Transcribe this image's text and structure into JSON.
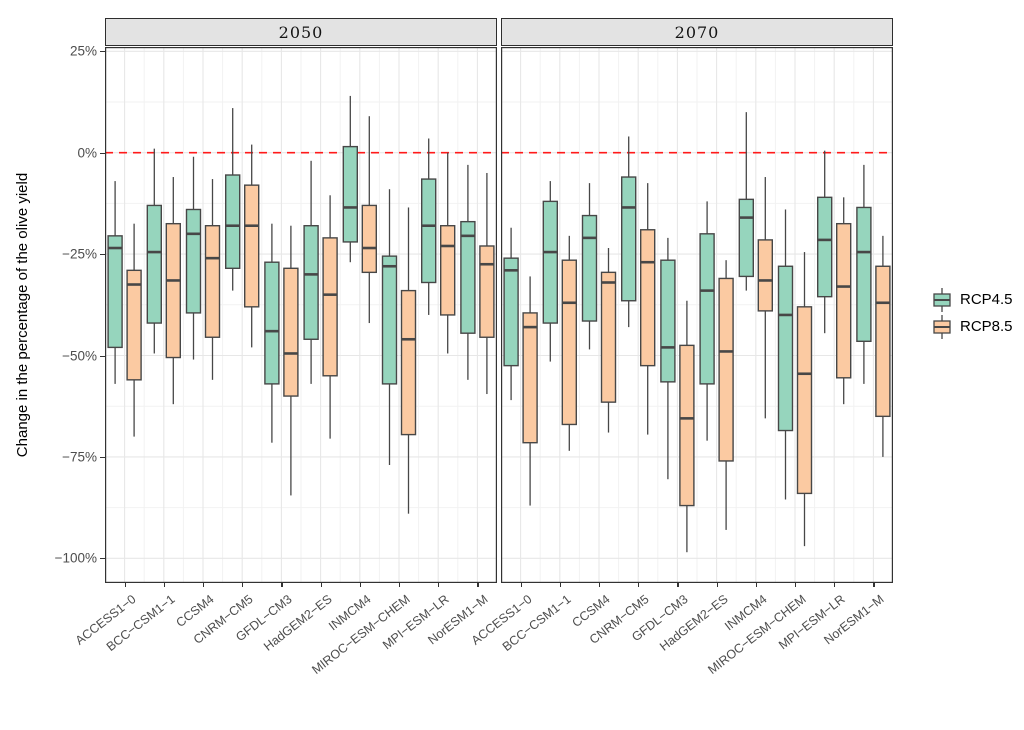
{
  "chart_data": {
    "type": "boxplot",
    "title": "",
    "ylabel": "Change in the percentage of the olive yield",
    "xlabel": "",
    "ylim": [
      -106,
      26
    ],
    "y_ticks": [
      "25%",
      "0%",
      "−25%",
      "−50%",
      "−75%",
      "−100%"
    ],
    "y_tick_values": [
      25,
      0,
      -25,
      -50,
      -75,
      -100
    ],
    "grid": true,
    "legend_position": "right",
    "reference_line": {
      "y": 0,
      "style": "dashed",
      "color": "#FF1A1A"
    },
    "categories": [
      "ACCESS1−0",
      "BCC−CSM1−1",
      "CCSM4",
      "CNRM−CM5",
      "GFDL−CM3",
      "HadGEM2−ES",
      "INMCM4",
      "MIROC−ESM−CHEM",
      "MPI−ESM−LR",
      "NorESM1−M"
    ],
    "series_names": [
      "RCP4.5",
      "RCP8.5"
    ],
    "stats_order": [
      "whisker_low",
      "q1",
      "median",
      "q3",
      "whisker_high"
    ],
    "facets": [
      {
        "label": "2050",
        "series": [
          {
            "name": "RCP4.5",
            "boxes": [
              [
                -57,
                -48,
                -23.5,
                -20.5,
                -7
              ],
              [
                -49.5,
                -42,
                -24.5,
                -13,
                1
              ],
              [
                -51,
                -39.5,
                -20,
                -14,
                -1
              ],
              [
                -34,
                -28.5,
                -18,
                -5.5,
                11
              ],
              [
                -71.5,
                -57,
                -44,
                -27,
                -17.5
              ],
              [
                -57,
                -46,
                -30,
                -18,
                -2
              ],
              [
                -27,
                -22,
                -13.5,
                1.5,
                14
              ],
              [
                -77,
                -57,
                -28,
                -25.5,
                -9
              ],
              [
                -40,
                -32,
                -18,
                -6.5,
                3.5
              ],
              [
                -56,
                -44.5,
                -20.5,
                -17,
                -3
              ]
            ]
          },
          {
            "name": "RCP8.5",
            "boxes": [
              [
                -70,
                -56,
                -32.5,
                -29,
                -17.5
              ],
              [
                -62,
                -50.5,
                -31.5,
                -17.5,
                -6
              ],
              [
                -56,
                -45.5,
                -26,
                -18,
                -6.5
              ],
              [
                -48,
                -38,
                -18,
                -8,
                2
              ],
              [
                -84.5,
                -60,
                -49.5,
                -28.5,
                -18
              ],
              [
                -70.5,
                -55,
                -35,
                -21,
                -10.5
              ],
              [
                -42,
                -29.5,
                -23.5,
                -13,
                9
              ],
              [
                -89,
                -69.5,
                -46,
                -34,
                -13.5
              ],
              [
                -49.5,
                -40,
                -23,
                -18,
                0
              ],
              [
                -59.5,
                -45.5,
                -27.5,
                -23,
                -5
              ]
            ]
          }
        ]
      },
      {
        "label": "2070",
        "series": [
          {
            "name": "RCP4.5",
            "boxes": [
              [
                -61,
                -52.5,
                -29,
                -26,
                -18.5
              ],
              [
                -51.5,
                -42,
                -24.5,
                -12,
                -7
              ],
              [
                -48.5,
                -41.5,
                -21,
                -15.5,
                -7.5
              ],
              [
                -43,
                -36.5,
                -13.5,
                -6,
                4
              ],
              [
                -80.5,
                -56.5,
                -48,
                -26.5,
                -21
              ],
              [
                -71,
                -57,
                -34,
                -20,
                -12
              ],
              [
                -34,
                -30.5,
                -16,
                -11.5,
                10
              ],
              [
                -85.5,
                -68.5,
                -40,
                -28,
                -14
              ],
              [
                -44.5,
                -35.5,
                -21.5,
                -11,
                0.5
              ],
              [
                -57,
                -46.5,
                -24.5,
                -13.5,
                -3
              ]
            ]
          },
          {
            "name": "RCP8.5",
            "boxes": [
              [
                -87,
                -71.5,
                -43,
                -39.5,
                -30.5
              ],
              [
                -73.5,
                -67,
                -37,
                -26.5,
                -20.5
              ],
              [
                -69,
                -61.5,
                -32,
                -29.5,
                -23.5
              ],
              [
                -69.5,
                -52.5,
                -27,
                -19,
                -7.5
              ],
              [
                -98.5,
                -87,
                -65.5,
                -47.5,
                -36.5
              ],
              [
                -93,
                -76,
                -49,
                -31,
                -26.5
              ],
              [
                -65.5,
                -39,
                -31.5,
                -21.5,
                -6
              ],
              [
                -97,
                -84,
                -54.5,
                -38,
                -24.5
              ],
              [
                -62,
                -55.5,
                -33,
                -17.5,
                -11
              ],
              [
                -75,
                -65,
                -37,
                -28,
                -20.5
              ]
            ]
          }
        ]
      }
    ],
    "colors": {
      "rcp45_fill": "#96D5BD",
      "rcp85_fill": "#FBCAA2",
      "box_border": "#474747",
      "zero_line": "#FF1A1A",
      "grid_major": "#E7E7E7",
      "grid_minor": "#F2F2F2",
      "panel_border": "#333333",
      "axis_text": "#4D4D4D"
    }
  },
  "legend": {
    "items": [
      {
        "label": "RCP4.5"
      },
      {
        "label": "RCP8.5"
      }
    ]
  }
}
